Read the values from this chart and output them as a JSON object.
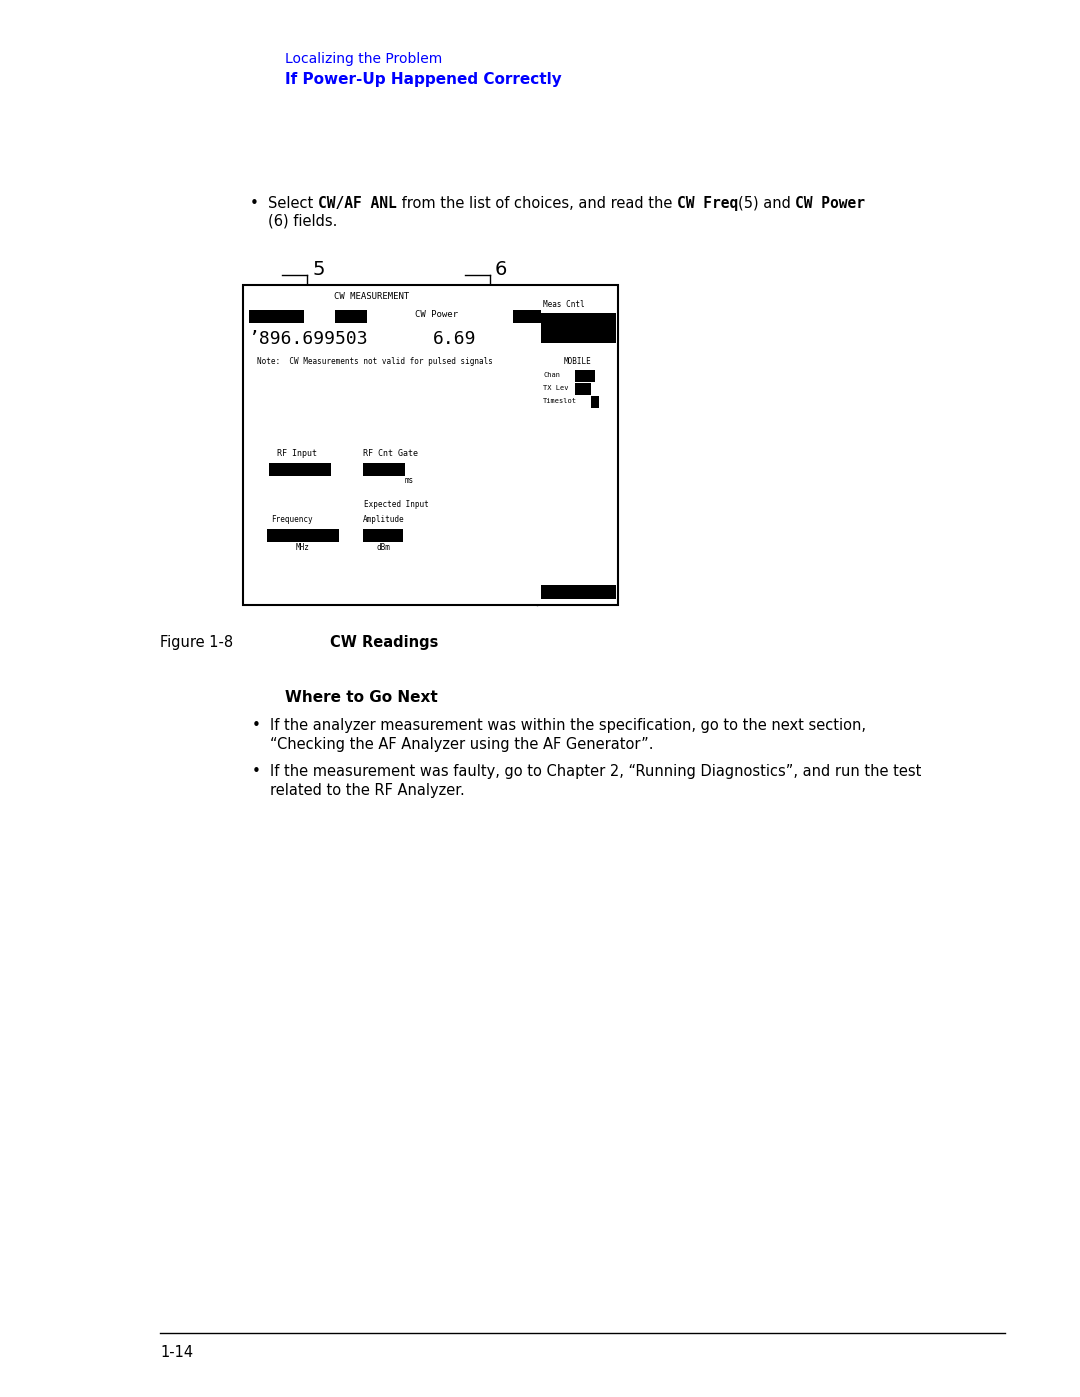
{
  "bg_color": "#ffffff",
  "page_width": 10.8,
  "page_height": 13.97,
  "header_line1": "Localizing the Problem",
  "header_line2": "If Power-Up Happened Correctly",
  "header_line1_color": "#0000ff",
  "header_line2_color": "#0000ff",
  "figure_label": "Figure 1-8",
  "figure_caption": "CW Readings",
  "where_to_go_next": "Where to Go Next",
  "bullet2_line1": "If the analyzer measurement was within the specification, go to the next section,",
  "bullet2_line2": "“Checking the AF Analyzer using the AF Generator”.",
  "bullet3_line1": "If the measurement was faulty, go to Chapter 2, “Running Diagnostics”, and run the test",
  "bullet3_line2": "related to the RF Analyzer.",
  "page_number": "1-14"
}
